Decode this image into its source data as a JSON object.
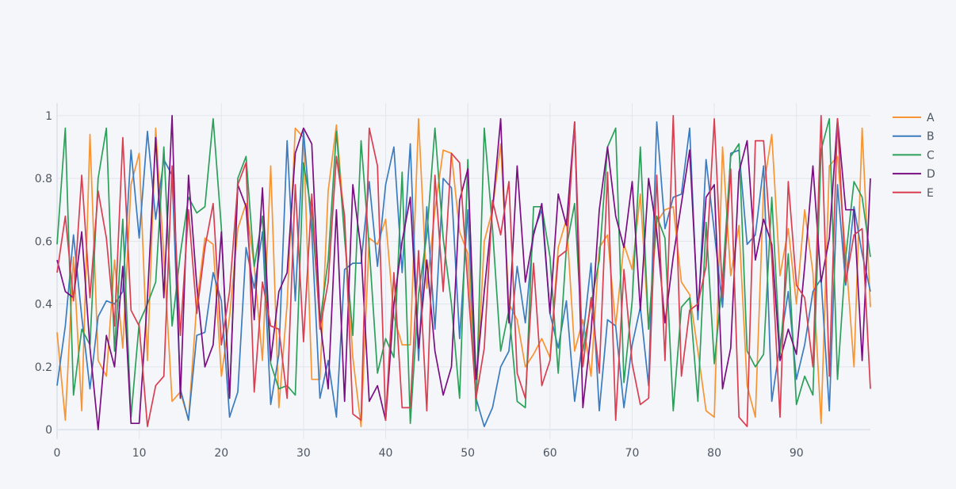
{
  "chart_data": {
    "type": "line",
    "title": "",
    "xlabel": "",
    "ylabel": "",
    "xlim": [
      0,
      99
    ],
    "ylim": [
      -0.03,
      1.04
    ],
    "x_ticks": [
      0,
      10,
      20,
      30,
      40,
      50,
      60,
      70,
      80,
      90
    ],
    "y_ticks": [
      0,
      0.2,
      0.4,
      0.6,
      0.8,
      1
    ],
    "x_tick_labels": [
      "0",
      "10",
      "20",
      "30",
      "40",
      "50",
      "60",
      "70",
      "80",
      "90"
    ],
    "y_tick_labels": [
      "0",
      "0.2",
      "0.4",
      "0.6",
      "0.8",
      "1"
    ],
    "grid": true,
    "legend_position": "top-right",
    "x": [
      0,
      1,
      2,
      3,
      4,
      5,
      6,
      7,
      8,
      9,
      10,
      11,
      12,
      13,
      14,
      15,
      16,
      17,
      18,
      19,
      20,
      21,
      22,
      23,
      24,
      25,
      26,
      27,
      28,
      29,
      30,
      31,
      32,
      33,
      34,
      35,
      36,
      37,
      38,
      39,
      40,
      41,
      42,
      43,
      44,
      45,
      46,
      47,
      48,
      49,
      50,
      51,
      52,
      53,
      54,
      55,
      56,
      57,
      58,
      59,
      60,
      61,
      62,
      63,
      64,
      65,
      66,
      67,
      68,
      69,
      70,
      71,
      72,
      73,
      74,
      75,
      76,
      77,
      78,
      79,
      80,
      81,
      82,
      83,
      84,
      85,
      86,
      87,
      88,
      89,
      90,
      91,
      92,
      93,
      94,
      95,
      96,
      97,
      98,
      99
    ],
    "series": [
      {
        "name": "A",
        "color": "#f79433",
        "values": [
          0.31,
          0.03,
          0.55,
          0.06,
          0.94,
          0.22,
          0.17,
          0.54,
          0.26,
          0.78,
          0.88,
          0.22,
          0.96,
          0.55,
          0.09,
          0.12,
          0.03,
          0.4,
          0.61,
          0.59,
          0.17,
          0.36,
          0.64,
          0.72,
          0.52,
          0.22,
          0.84,
          0.07,
          0.4,
          0.96,
          0.93,
          0.16,
          0.16,
          0.76,
          0.97,
          0.65,
          0.23,
          0.01,
          0.61,
          0.59,
          0.67,
          0.36,
          0.27,
          0.27,
          0.99,
          0.45,
          0.7,
          0.89,
          0.88,
          0.63,
          0.56,
          0.09,
          0.6,
          0.7,
          0.91,
          0.4,
          0.35,
          0.2,
          0.24,
          0.29,
          0.23,
          0.58,
          0.67,
          0.25,
          0.35,
          0.17,
          0.58,
          0.62,
          0.33,
          0.59,
          0.51,
          0.75,
          0.32,
          0.66,
          0.7,
          0.71,
          0.47,
          0.43,
          0.25,
          0.06,
          0.04,
          0.9,
          0.49,
          0.65,
          0.14,
          0.04,
          0.77,
          0.94,
          0.49,
          0.64,
          0.4,
          0.7,
          0.5,
          0.02,
          0.84,
          0.87,
          0.56,
          0.2,
          0.96,
          0.39
        ]
      },
      {
        "name": "B",
        "color": "#3b7bbf",
        "values": [
          0.14,
          0.33,
          0.62,
          0.36,
          0.13,
          0.36,
          0.41,
          0.4,
          0.44,
          0.89,
          0.61,
          0.95,
          0.67,
          0.86,
          0.81,
          0.13,
          0.03,
          0.3,
          0.31,
          0.5,
          0.41,
          0.04,
          0.12,
          0.58,
          0.45,
          0.63,
          0.08,
          0.24,
          0.92,
          0.41,
          0.95,
          0.63,
          0.1,
          0.22,
          0.04,
          0.51,
          0.53,
          0.53,
          0.79,
          0.52,
          0.78,
          0.9,
          0.5,
          0.91,
          0.22,
          0.71,
          0.32,
          0.8,
          0.77,
          0.29,
          0.7,
          0.1,
          0.01,
          0.07,
          0.2,
          0.25,
          0.52,
          0.34,
          0.63,
          0.7,
          0.37,
          0.26,
          0.41,
          0.09,
          0.29,
          0.53,
          0.06,
          0.35,
          0.33,
          0.07,
          0.27,
          0.39,
          0.14,
          0.98,
          0.64,
          0.74,
          0.75,
          0.96,
          0.35,
          0.86,
          0.63,
          0.39,
          0.88,
          0.89,
          0.59,
          0.62,
          0.84,
          0.09,
          0.27,
          0.44,
          0.16,
          0.27,
          0.44,
          0.48,
          0.06,
          0.78,
          0.46,
          0.71,
          0.56,
          0.44
        ]
      },
      {
        "name": "C",
        "color": "#2ca05a",
        "values": [
          0.59,
          0.96,
          0.11,
          0.32,
          0.27,
          0.8,
          0.96,
          0.25,
          0.67,
          0.04,
          0.34,
          0.4,
          0.47,
          0.9,
          0.33,
          0.56,
          0.74,
          0.69,
          0.71,
          0.99,
          0.64,
          0.1,
          0.8,
          0.87,
          0.52,
          0.68,
          0.21,
          0.13,
          0.14,
          0.11,
          0.85,
          0.69,
          0.34,
          0.54,
          0.95,
          0.61,
          0.3,
          0.92,
          0.58,
          0.18,
          0.29,
          0.23,
          0.82,
          0.02,
          0.43,
          0.62,
          0.96,
          0.61,
          0.4,
          0.1,
          0.86,
          0.06,
          0.96,
          0.64,
          0.25,
          0.38,
          0.09,
          0.07,
          0.71,
          0.71,
          0.55,
          0.18,
          0.58,
          0.72,
          0.25,
          0.4,
          0.54,
          0.9,
          0.96,
          0.15,
          0.41,
          0.9,
          0.32,
          0.68,
          0.61,
          0.06,
          0.39,
          0.42,
          0.09,
          0.66,
          0.21,
          0.48,
          0.87,
          0.91,
          0.25,
          0.2,
          0.24,
          0.74,
          0.24,
          0.56,
          0.08,
          0.17,
          0.11,
          0.89,
          0.99,
          0.16,
          0.55,
          0.79,
          0.74,
          0.55
        ]
      },
      {
        "name": "D",
        "color": "#7a0e82",
        "values": [
          0.54,
          0.44,
          0.42,
          0.63,
          0.26,
          0.0,
          0.3,
          0.2,
          0.52,
          0.02,
          0.02,
          0.42,
          0.93,
          0.42,
          1.0,
          0.1,
          0.81,
          0.46,
          0.2,
          0.27,
          0.63,
          0.1,
          0.78,
          0.71,
          0.35,
          0.77,
          0.22,
          0.44,
          0.5,
          0.88,
          0.96,
          0.91,
          0.35,
          0.13,
          0.7,
          0.09,
          0.78,
          0.57,
          0.09,
          0.14,
          0.03,
          0.4,
          0.6,
          0.74,
          0.26,
          0.54,
          0.25,
          0.11,
          0.2,
          0.73,
          0.83,
          0.16,
          0.44,
          0.7,
          0.99,
          0.34,
          0.84,
          0.47,
          0.62,
          0.72,
          0.37,
          0.75,
          0.65,
          0.98,
          0.07,
          0.31,
          0.7,
          0.9,
          0.68,
          0.58,
          0.79,
          0.38,
          0.8,
          0.63,
          0.34,
          0.55,
          0.72,
          0.89,
          0.38,
          0.74,
          0.78,
          0.13,
          0.26,
          0.82,
          0.92,
          0.54,
          0.67,
          0.59,
          0.22,
          0.32,
          0.24,
          0.52,
          0.84,
          0.47,
          0.61,
          0.99,
          0.7,
          0.7,
          0.22,
          0.8
        ]
      },
      {
        "name": "E",
        "color": "#d93e51",
        "values": [
          0.5,
          0.68,
          0.41,
          0.81,
          0.42,
          0.76,
          0.61,
          0.33,
          0.93,
          0.38,
          0.33,
          0.01,
          0.14,
          0.17,
          0.84,
          0.3,
          0.7,
          0.37,
          0.58,
          0.72,
          0.27,
          0.44,
          0.78,
          0.85,
          0.12,
          0.47,
          0.33,
          0.32,
          0.1,
          0.78,
          0.28,
          0.75,
          0.32,
          0.47,
          0.87,
          0.68,
          0.05,
          0.03,
          0.96,
          0.84,
          0.03,
          0.5,
          0.07,
          0.07,
          0.57,
          0.06,
          0.81,
          0.44,
          0.88,
          0.85,
          0.46,
          0.1,
          0.26,
          0.73,
          0.62,
          0.79,
          0.18,
          0.1,
          0.53,
          0.14,
          0.22,
          0.55,
          0.57,
          0.98,
          0.2,
          0.42,
          0.18,
          0.82,
          0.03,
          0.51,
          0.21,
          0.08,
          0.1,
          0.81,
          0.22,
          1.0,
          0.17,
          0.38,
          0.4,
          0.52,
          0.99,
          0.42,
          0.83,
          0.04,
          0.01,
          0.92,
          0.92,
          0.55,
          0.04,
          0.79,
          0.46,
          0.42,
          0.2,
          1.0,
          0.17,
          0.99,
          0.47,
          0.62,
          0.64,
          0.13
        ]
      }
    ]
  }
}
